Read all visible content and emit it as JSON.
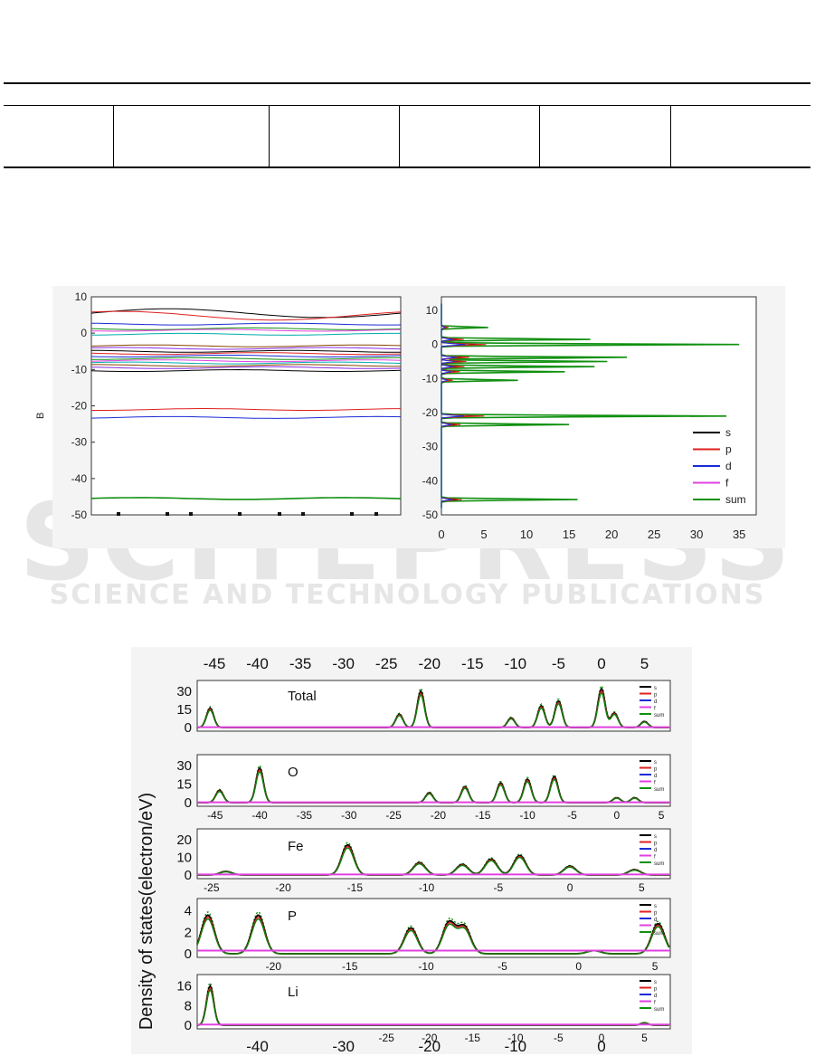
{
  "watermark": {
    "line1": "SCITEPRESS",
    "line2": "SCIENCE AND TECHNOLOGY PUBLICATIONS"
  },
  "figure_top": {
    "left_panel": {
      "ylabel": "B",
      "yticks": [
        "10",
        "0",
        "-10",
        "-20",
        "-30",
        "-40",
        "-50"
      ]
    },
    "right_panel": {
      "xticks": [
        "0",
        "5",
        "10",
        "15",
        "20",
        "25",
        "30",
        "35"
      ],
      "yticks": [
        "10",
        "0",
        "-10",
        "-20",
        "-30",
        "-40",
        "-50"
      ],
      "legend": [
        "s",
        "p",
        "d",
        "f",
        "sum"
      ]
    }
  },
  "figure_bottom": {
    "ylabel": "Density of states(electron/eV)",
    "top_axis_ticks": [
      "-45",
      "-40",
      "-35",
      "-30",
      "-25",
      "-20",
      "-15",
      "-10",
      "-5",
      "0",
      "5"
    ],
    "bottom_axis_ticks": [
      "-40",
      "-30",
      "-20",
      "-10",
      "0"
    ],
    "panels": [
      {
        "label": "Total",
        "yticks": [
          "30",
          "15",
          "0"
        ],
        "xticks": []
      },
      {
        "label": "O",
        "yticks": [
          "30",
          "15",
          "0"
        ],
        "xticks": [
          "-45",
          "-40",
          "-35",
          "-30",
          "-25",
          "-20",
          "-15",
          "-10",
          "-5",
          "0",
          "5"
        ]
      },
      {
        "label": "Fe",
        "yticks": [
          "20",
          "10",
          "0"
        ],
        "xticks": [
          "-25",
          "-20",
          "-15",
          "-10",
          "-5",
          "0",
          "5"
        ]
      },
      {
        "label": "P",
        "yticks": [
          "4",
          "2",
          "0"
        ],
        "xticks": [
          "-20",
          "-15",
          "-10",
          "-5",
          "0",
          "5"
        ]
      },
      {
        "label": "Li",
        "yticks": [
          "16",
          "8",
          "0"
        ],
        "xticks": [
          "-25",
          "-20",
          "-15",
          "-10",
          "-5",
          "0",
          "5"
        ]
      }
    ],
    "legend": [
      "s",
      "p",
      "d",
      "f",
      "sum"
    ]
  },
  "colors": {
    "s": "#000000",
    "p": "#e02020",
    "d": "#1a2bd6",
    "f": "#e040e0",
    "sum": "#109010"
  }
}
